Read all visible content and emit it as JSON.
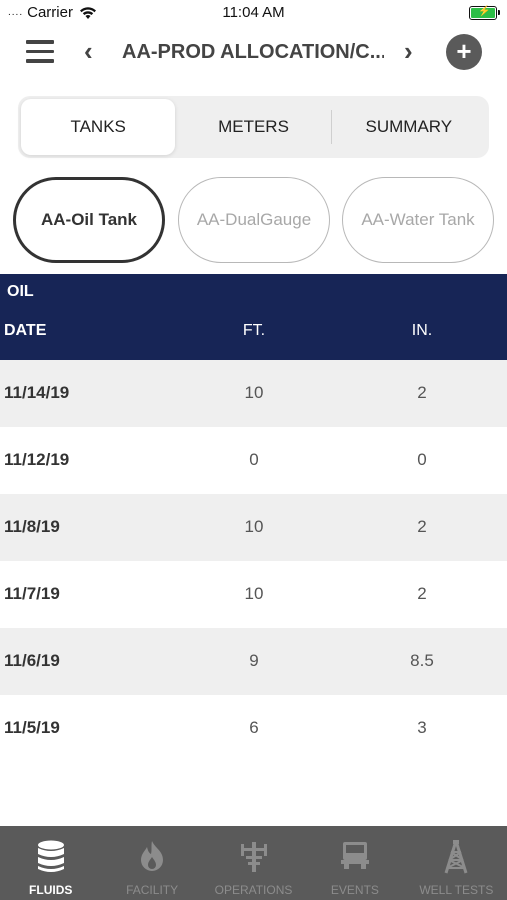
{
  "status_bar": {
    "dots": "....",
    "carrier": "Carrier",
    "time": "11:04 AM"
  },
  "header": {
    "title": "AA-PROD ALLOCATION/C..."
  },
  "segments": [
    {
      "label": "TANKS",
      "active": true
    },
    {
      "label": "METERS",
      "active": false
    },
    {
      "label": "SUMMARY",
      "active": false
    }
  ],
  "tanks": [
    {
      "label": "AA-Oil Tank",
      "active": true
    },
    {
      "label": "AA-DualGauge",
      "active": false
    },
    {
      "label": "AA-Water Tank",
      "active": false
    }
  ],
  "table": {
    "section": "OIL",
    "columns": {
      "date": "DATE",
      "ft": "FT.",
      "in": "IN."
    },
    "rows": [
      {
        "date": "11/14/19",
        "ft": "10",
        "in": "2"
      },
      {
        "date": "11/12/19",
        "ft": "0",
        "in": "0"
      },
      {
        "date": "11/8/19",
        "ft": "10",
        "in": "2"
      },
      {
        "date": "11/7/19",
        "ft": "10",
        "in": "2"
      },
      {
        "date": "11/6/19",
        "ft": "9",
        "in": "8.5"
      },
      {
        "date": "11/5/19",
        "ft": "6",
        "in": "3"
      }
    ]
  },
  "tab_bar": {
    "tabs": [
      {
        "label": "FLUIDS",
        "icon": "database-icon",
        "active": true
      },
      {
        "label": "FACILITY",
        "icon": "flame-icon",
        "active": false
      },
      {
        "label": "OPERATIONS",
        "icon": "pump-icon",
        "active": false
      },
      {
        "label": "EVENTS",
        "icon": "truck-icon",
        "active": false
      },
      {
        "label": "WELL TESTS",
        "icon": "derrick-icon",
        "active": false
      }
    ]
  },
  "colors": {
    "header_navy": "#172556",
    "tab_bar": "#5a5a5a",
    "battery_green": "#2dbe47"
  }
}
